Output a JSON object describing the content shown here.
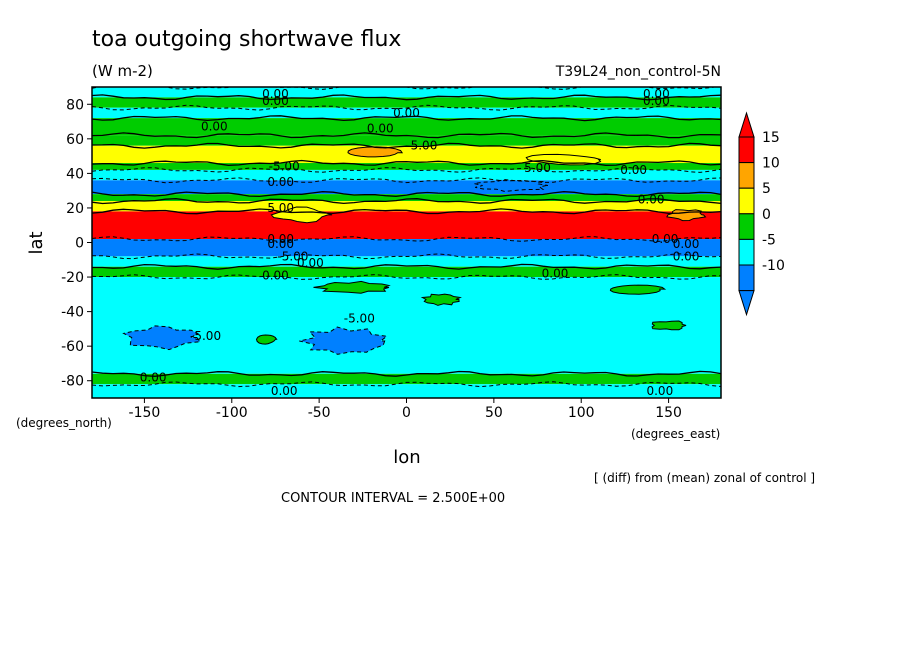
{
  "chart_data": {
    "type": "heatmap",
    "title": "toa outgoing shortwave flux",
    "units": "(W m-2)",
    "run_label": "T39L24_non_control-5N",
    "xlabel": "lon",
    "ylabel": "lat",
    "x_unit_label": "(degrees_east)",
    "y_unit_label": "(degrees_north)",
    "xlim": [
      -180,
      180
    ],
    "ylim": [
      -90,
      90
    ],
    "xticks": [
      -150,
      -100,
      -50,
      0,
      50,
      100,
      150
    ],
    "xtick_labels": [
      "-150",
      "-100",
      "-50",
      "0",
      "50",
      "100",
      "150"
    ],
    "yticks": [
      80,
      60,
      40,
      20,
      0,
      -20,
      -40,
      -60,
      -80
    ],
    "ytick_labels": [
      "80",
      "60",
      "40",
      "20",
      "0",
      "-20",
      "-40",
      "-60",
      "-80"
    ],
    "colorbar": {
      "levels": [
        15,
        10,
        5,
        0,
        -5,
        -10
      ],
      "labels": [
        "15",
        "10",
        "5",
        "0",
        "-5",
        "-10"
      ],
      "colors": [
        "#ff0000",
        "#ffa500",
        "#ffff00",
        "#00cc00",
        "#00ffff",
        "#0080ff"
      ],
      "top_arrow_color": "#ff0000",
      "bottom_arrow_color": "#0080ff"
    },
    "lat_bands": [
      {
        "lat_min": 84,
        "lat_max": 90,
        "value": -2.5
      },
      {
        "lat_min": 78,
        "lat_max": 84,
        "value": 2.5
      },
      {
        "lat_min": 72,
        "lat_max": 78,
        "value": -2.5
      },
      {
        "lat_min": 62,
        "lat_max": 72,
        "value": 2.5
      },
      {
        "lat_min": 56,
        "lat_max": 62,
        "value": 2.5
      },
      {
        "lat_min": 46,
        "lat_max": 56,
        "value": 7.5
      },
      {
        "lat_min": 42,
        "lat_max": 46,
        "value": 2.5
      },
      {
        "lat_min": 36,
        "lat_max": 42,
        "value": -2.5
      },
      {
        "lat_min": 28,
        "lat_max": 36,
        "value": -7.5
      },
      {
        "lat_min": 24,
        "lat_max": 28,
        "value": 2.5
      },
      {
        "lat_min": 18,
        "lat_max": 24,
        "value": 7.5
      },
      {
        "lat_min": 2,
        "lat_max": 18,
        "value": 17.5
      },
      {
        "lat_min": -8,
        "lat_max": 2,
        "value": -12.5
      },
      {
        "lat_min": -14,
        "lat_max": -8,
        "value": -2.5
      },
      {
        "lat_min": -20,
        "lat_max": -14,
        "value": 2.5
      },
      {
        "lat_min": -76,
        "lat_max": -20,
        "value": -2.5
      },
      {
        "lat_min": -82,
        "lat_max": -76,
        "value": 2.5
      },
      {
        "lat_min": -90,
        "lat_max": -82,
        "value": -2.5
      }
    ],
    "patches": [
      {
        "lon": -140,
        "lat": -55,
        "w": 40,
        "h": 12,
        "value": -7.5
      },
      {
        "lon": -35,
        "lat": -57,
        "w": 45,
        "h": 14,
        "value": -7.5
      },
      {
        "lon": 60,
        "lat": 33,
        "w": 40,
        "h": 6,
        "value": -12.5
      },
      {
        "lon": -60,
        "lat": 16,
        "w": 30,
        "h": 8,
        "value": 7.5
      },
      {
        "lon": -20,
        "lat": 52,
        "w": 30,
        "h": 6,
        "value": 12.5
      },
      {
        "lon": 90,
        "lat": 48,
        "w": 40,
        "h": 6,
        "value": 7.5
      },
      {
        "lon": 160,
        "lat": 16,
        "w": 20,
        "h": 6,
        "value": 12.5
      },
      {
        "lon": 20,
        "lat": -33,
        "w": 20,
        "h": 6,
        "value": 2.5
      },
      {
        "lon": -30,
        "lat": -26,
        "w": 40,
        "h": 6,
        "value": 2.5
      },
      {
        "lon": 150,
        "lat": -48,
        "w": 20,
        "h": 5,
        "value": 2.5
      },
      {
        "lon": -80,
        "lat": -56,
        "w": 10,
        "h": 6,
        "value": 2.5
      },
      {
        "lon": 130,
        "lat": -27,
        "w": 30,
        "h": 5,
        "value": 2.5
      }
    ],
    "contour_labels": [
      {
        "text": "0.00",
        "lon": -75,
        "lat": 86
      },
      {
        "text": "0.00",
        "lon": -75,
        "lat": 82
      },
      {
        "text": "0.00",
        "lon": 143,
        "lat": 86
      },
      {
        "text": "0.00",
        "lon": 143,
        "lat": 82
      },
      {
        "text": "0.00",
        "lon": 0,
        "lat": 75
      },
      {
        "text": "0.00",
        "lon": -110,
        "lat": 67
      },
      {
        "text": "0.00",
        "lon": -15,
        "lat": 66
      },
      {
        "text": "5.00",
        "lon": 10,
        "lat": 56
      },
      {
        "text": "5.00",
        "lon": 75,
        "lat": 43
      },
      {
        "text": "-5.00",
        "lon": -70,
        "lat": 44
      },
      {
        "text": "0.00",
        "lon": 130,
        "lat": 42
      },
      {
        "text": "0.00",
        "lon": 140,
        "lat": 25
      },
      {
        "text": "5.00",
        "lon": -72,
        "lat": 20
      },
      {
        "text": "0.00",
        "lon": -72,
        "lat": 35
      },
      {
        "text": "0.00",
        "lon": -72,
        "lat": 2
      },
      {
        "text": "0.00",
        "lon": -72,
        "lat": -1
      },
      {
        "text": "0.00",
        "lon": 148,
        "lat": 2
      },
      {
        "text": "0.00",
        "lon": 160,
        "lat": -1
      },
      {
        "text": "-5.00",
        "lon": -65,
        "lat": -8
      },
      {
        "text": "0.00",
        "lon": -55,
        "lat": -12
      },
      {
        "text": "0.00",
        "lon": 160,
        "lat": -8
      },
      {
        "text": "0.00",
        "lon": -75,
        "lat": -19
      },
      {
        "text": "0.00",
        "lon": 85,
        "lat": -18
      },
      {
        "text": "-5.00",
        "lon": -27,
        "lat": -44
      },
      {
        "text": "-5.00",
        "lon": -115,
        "lat": -54
      },
      {
        "text": "0.00",
        "lon": -145,
        "lat": -78
      },
      {
        "text": "0.00",
        "lon": -70,
        "lat": -86
      },
      {
        "text": "0.00",
        "lon": 145,
        "lat": -86
      }
    ],
    "footer_note": "[ (diff) from (mean) zonal of control ]",
    "contour_interval": "CONTOUR INTERVAL = 2.500E+00",
    "legend_placement": "right",
    "grid": false
  }
}
